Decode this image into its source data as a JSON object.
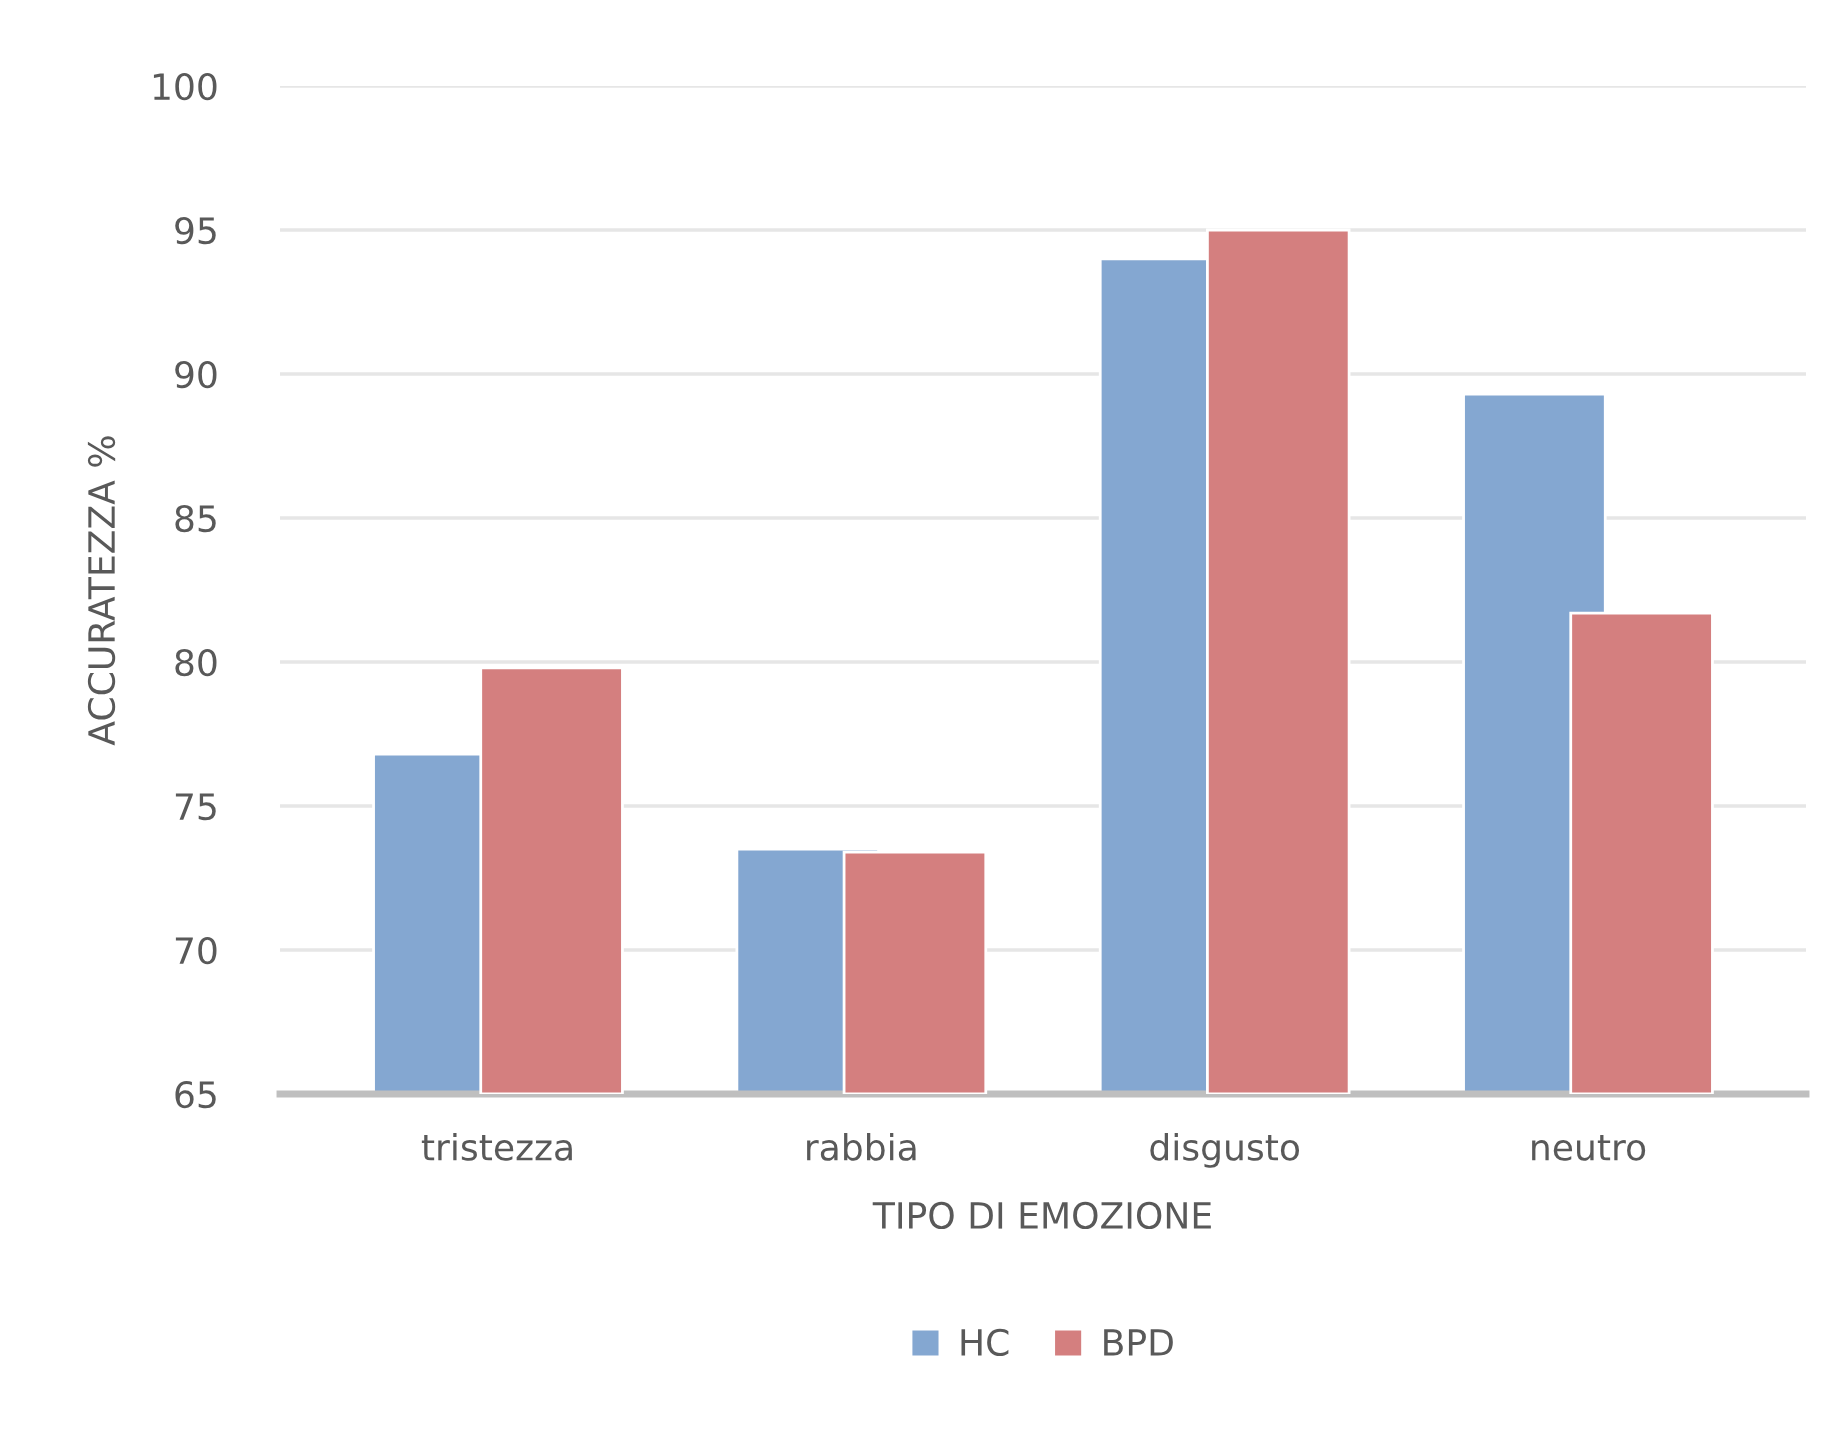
{
  "chart_data": {
    "type": "bar",
    "xlabel": "TIPO DI EMOZIONE",
    "ylabel": "ACCURATEZZA %",
    "categories": [
      "tristezza",
      "rabbia",
      "disgusto",
      "neutro"
    ],
    "series": [
      {
        "name": "HC",
        "color": "#84a7d1",
        "values": [
          76.8,
          73.5,
          94.0,
          89.3
        ]
      },
      {
        "name": "BPD",
        "color": "#d47f7f",
        "values": [
          79.8,
          73.4,
          95.0,
          81.7
        ]
      }
    ],
    "ylim": [
      65,
      100
    ],
    "yticks": [
      65,
      70,
      75,
      80,
      85,
      90,
      95,
      100
    ],
    "grid": "y",
    "legend": "bottom"
  }
}
